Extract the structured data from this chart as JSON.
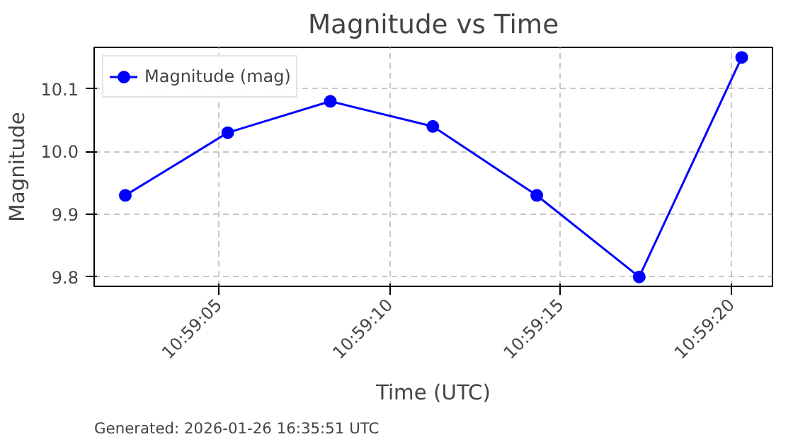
{
  "chart_data": {
    "type": "line",
    "title": "Magnitude vs Time",
    "xlabel": "Time (UTC)",
    "ylabel": "Magnitude",
    "x": [
      10.983961,
      10.984794,
      10.985628,
      10.986461,
      10.987306,
      10.988139,
      10.988972
    ],
    "series": [
      {
        "name": "Magnitude (mag)",
        "color": "#0000ff",
        "values": [
          9.93,
          10.03,
          10.08,
          10.04,
          9.93,
          9.8,
          10.15
        ]
      }
    ],
    "xlim": [
      10.983708,
      10.989222
    ],
    "xticks": [
      {
        "value": 10.9847222,
        "label": "10:59:05"
      },
      {
        "value": 10.9861111,
        "label": "10:59:10"
      },
      {
        "value": 10.9875,
        "label": "10:59:15"
      },
      {
        "value": 10.9888889,
        "label": "10:59:20"
      }
    ],
    "ylim": [
      9.785,
      10.166
    ],
    "yticks": [
      {
        "value": 9.8,
        "label": "9.8"
      },
      {
        "value": 9.9,
        "label": "9.9"
      },
      {
        "value": 10.0,
        "label": "10.0"
      },
      {
        "value": 10.1,
        "label": "10.1"
      }
    ],
    "grid": true,
    "legend": "top left",
    "marker": "circle",
    "line_style": "solid",
    "annotations": [
      "Generated: 2026-01-26 16:35:51 UTC"
    ]
  }
}
